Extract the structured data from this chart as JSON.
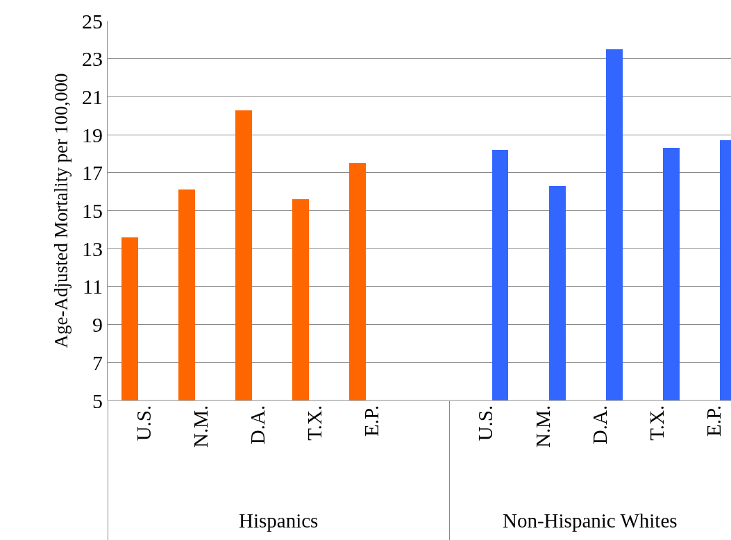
{
  "chart_data": {
    "type": "bar",
    "ylabel": "Age-Adjusted Mortality per 100,000",
    "categories": [
      "U.S.",
      "N.M.",
      "D.A.",
      "T.X.",
      "E.P.",
      null,
      "U.S.",
      "N.M.",
      "D.A.",
      "T.X.",
      "E.P."
    ],
    "series": [
      {
        "name": "Hispanics",
        "color": "#ff6600",
        "values": [
          13.6,
          16.1,
          20.3,
          15.6,
          17.5,
          null,
          null,
          null,
          null,
          null,
          null
        ]
      },
      {
        "name": "Non-Hispanic Whites",
        "color": "#3366ff",
        "values": [
          null,
          null,
          null,
          null,
          null,
          null,
          18.2,
          16.3,
          23.5,
          18.3,
          18.7
        ]
      }
    ],
    "ylim": [
      5,
      25
    ],
    "yticks": [
      5,
      7,
      9,
      11,
      13,
      15,
      17,
      19,
      21,
      23,
      25
    ],
    "grid": "y",
    "legend": false
  }
}
